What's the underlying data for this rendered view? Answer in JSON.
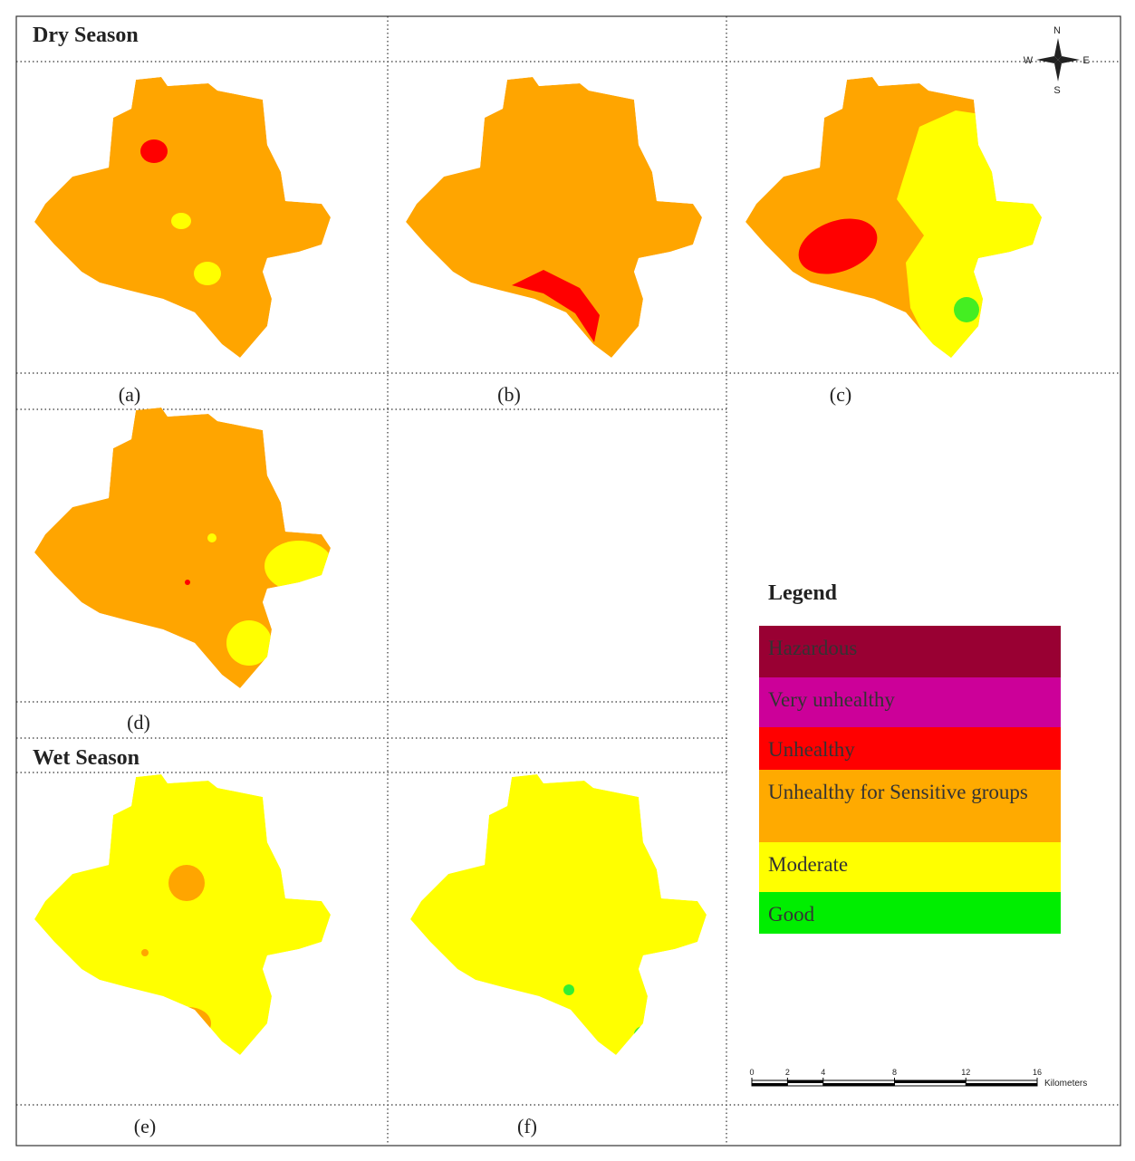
{
  "panels": {
    "dry_title": "Dry Season",
    "wet_title": "Wet Season",
    "labels": [
      "(a)",
      "(b)",
      "(c)",
      "(d)",
      "(e)",
      "(f)"
    ]
  },
  "compass": {
    "north": "N",
    "south": "S",
    "east": "E",
    "west": "W"
  },
  "legend": {
    "title": "Legend",
    "items": [
      {
        "label": "Hazardous",
        "color": "#990033"
      },
      {
        "label": "Very unhealthy",
        "color": "#cc0099"
      },
      {
        "label": "Unhealthy",
        "color": "#ff0000"
      },
      {
        "label": "Unhealthy for Sensitive groups",
        "color": "#ffaa00"
      },
      {
        "label": "Moderate",
        "color": "#ffff00"
      },
      {
        "label": "Good",
        "color": "#00ee00"
      }
    ]
  },
  "scale_bar": {
    "ticks": [
      0,
      2,
      4,
      8,
      12,
      16
    ],
    "unit": "Kilometers"
  }
}
